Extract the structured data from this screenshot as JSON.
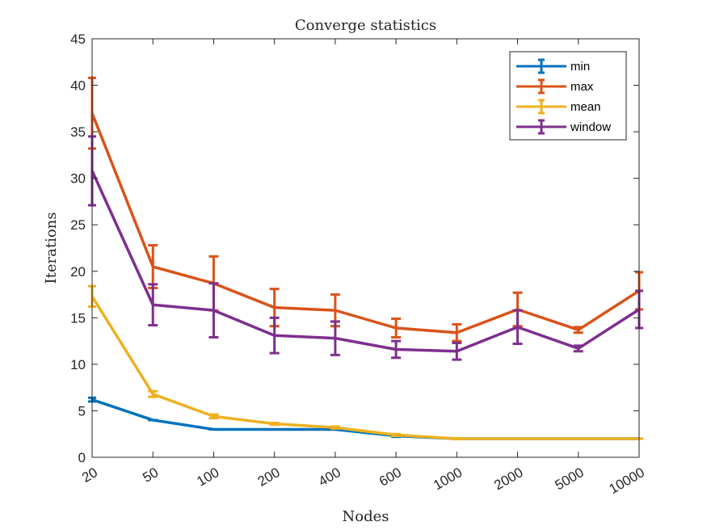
{
  "chart_data": {
    "type": "line",
    "title": "Converge statistics",
    "xlabel": "Nodes",
    "ylabel": "Iterations",
    "categories": [
      "20",
      "50",
      "100",
      "200",
      "400",
      "600",
      "1000",
      "2000",
      "5000",
      "10000"
    ],
    "ylim": [
      0,
      45
    ],
    "yticks": [
      0,
      5,
      10,
      15,
      20,
      25,
      30,
      35,
      40,
      45
    ],
    "grid": false,
    "legend_position": "top-right",
    "series": [
      {
        "name": "min",
        "color": "#0072BD",
        "values": [
          6.2,
          4.0,
          3.0,
          3.0,
          3.0,
          2.3,
          2.0,
          2.0,
          2.0,
          2.0
        ],
        "errors": [
          0.2,
          0.0,
          0.0,
          0.0,
          0.0,
          0.1,
          0.0,
          0.0,
          0.0,
          0.0
        ]
      },
      {
        "name": "max",
        "color": "#D95319",
        "values": [
          37.0,
          20.5,
          18.7,
          16.1,
          15.8,
          13.9,
          13.4,
          15.9,
          13.7,
          17.9
        ],
        "errors": [
          3.8,
          2.3,
          2.9,
          2.0,
          1.7,
          1.0,
          0.9,
          1.8,
          0.3,
          2.0
        ]
      },
      {
        "name": "mean",
        "color": "#EDB120",
        "values": [
          17.3,
          6.8,
          4.4,
          3.6,
          3.2,
          2.4,
          2.0,
          2.0,
          2.0,
          2.0
        ],
        "errors": [
          1.1,
          0.3,
          0.2,
          0.1,
          0.1,
          0.1,
          0.05,
          0.0,
          0.0,
          0.0
        ]
      },
      {
        "name": "window",
        "color": "#7E2F8E",
        "values": [
          30.8,
          16.4,
          15.8,
          13.1,
          12.8,
          11.6,
          11.4,
          14.0,
          11.7,
          15.9
        ],
        "errors": [
          3.7,
          2.2,
          2.9,
          1.9,
          1.8,
          0.9,
          0.9,
          1.8,
          0.3,
          2.0
        ]
      }
    ]
  }
}
